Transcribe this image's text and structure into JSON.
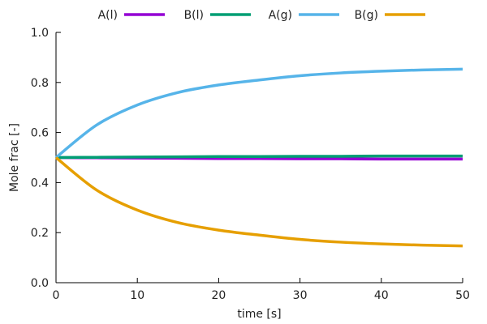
{
  "chart_data": {
    "type": "line",
    "xlabel": "time [s]",
    "ylabel": "Mole frac [-]",
    "xlim": [
      0,
      50
    ],
    "ylim": [
      0.0,
      1.0
    ],
    "x_ticks": [
      0,
      10,
      20,
      30,
      40,
      50
    ],
    "y_ticks": [
      0.0,
      0.2,
      0.4,
      0.6,
      0.8,
      1.0
    ],
    "x_tick_labels": [
      "0",
      "10",
      "20",
      "30",
      "40",
      "50"
    ],
    "y_tick_labels": [
      "0.0",
      "0.2",
      "0.4",
      "0.6",
      "0.8",
      "1.0"
    ],
    "grid": false,
    "legend_position": "top",
    "series": [
      {
        "name": "A(l)",
        "color": "#9400d3",
        "x": [
          0,
          5,
          10,
          15,
          20,
          25,
          30,
          35,
          40,
          45,
          50
        ],
        "values": [
          0.5,
          0.499,
          0.498,
          0.497,
          0.496,
          0.496,
          0.495,
          0.495,
          0.494,
          0.494,
          0.494
        ]
      },
      {
        "name": "B(l)",
        "color": "#009e73",
        "x": [
          0,
          5,
          10,
          15,
          20,
          25,
          30,
          35,
          40,
          45,
          50
        ],
        "values": [
          0.5,
          0.501,
          0.502,
          0.503,
          0.504,
          0.504,
          0.505,
          0.505,
          0.506,
          0.506,
          0.506
        ]
      },
      {
        "name": "A(g)",
        "color": "#56b4e9",
        "x": [
          0,
          5,
          10,
          15,
          20,
          25,
          30,
          35,
          40,
          45,
          50
        ],
        "values": [
          0.5,
          0.63,
          0.71,
          0.76,
          0.79,
          0.81,
          0.827,
          0.838,
          0.845,
          0.85,
          0.853
        ]
      },
      {
        "name": "B(g)",
        "color": "#e69f00",
        "x": [
          0,
          5,
          10,
          15,
          20,
          25,
          30,
          35,
          40,
          45,
          50
        ],
        "values": [
          0.5,
          0.37,
          0.29,
          0.24,
          0.21,
          0.19,
          0.173,
          0.162,
          0.155,
          0.15,
          0.147
        ]
      }
    ]
  }
}
